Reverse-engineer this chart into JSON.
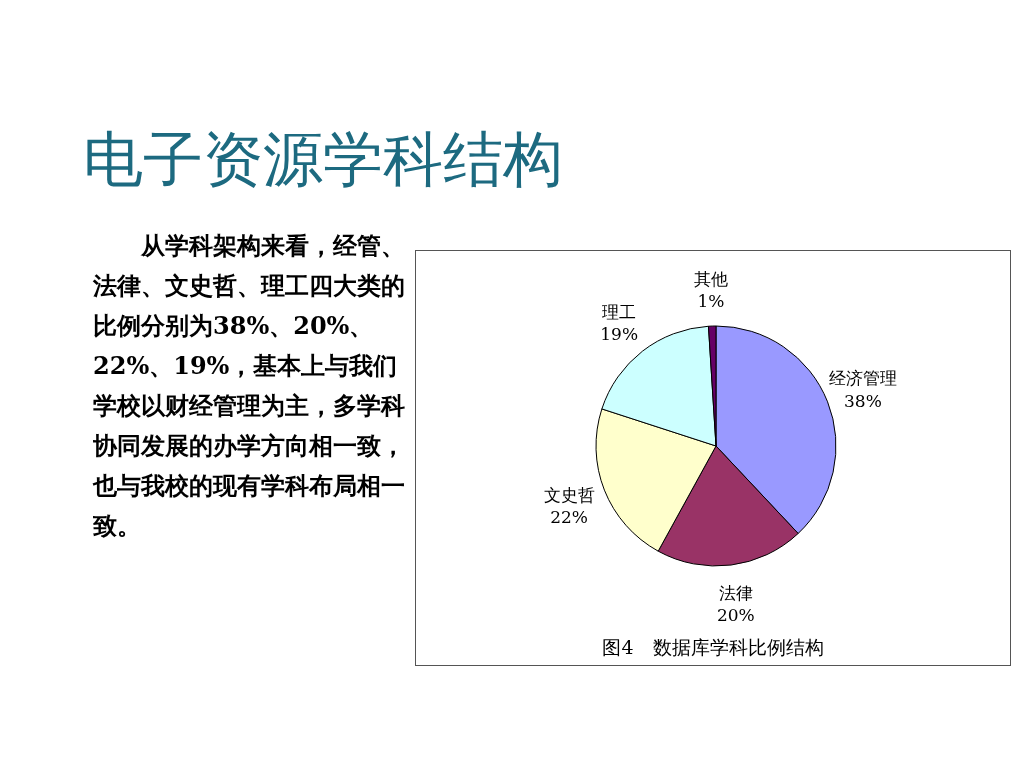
{
  "chart_data": {
    "type": "pie",
    "title": "电子资源学科结构",
    "categories": [
      "经济管理",
      "法律",
      "文史哲",
      "理工",
      "其他"
    ],
    "values": [
      38,
      20,
      22,
      19,
      1
    ],
    "value_labels": [
      "38%",
      "20%",
      "22%",
      "19%",
      "1%"
    ],
    "colors": [
      "#9999ff",
      "#993366",
      "#ffffcc",
      "#ccffff",
      "#660066"
    ],
    "legend": false,
    "annotations": [
      "从学科架构来看，经管、法律、文史哲、理工四大类的比例分别为38%、20%、22%、19%，基本上与我们学校以财经管理为主，多学科协同发展的办学方向相一致，也与我校的现有学科布局相一致。",
      "图4　数据库学科比例结构"
    ]
  }
}
